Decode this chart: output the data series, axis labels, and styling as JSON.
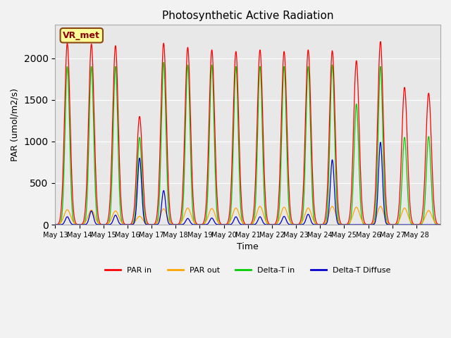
{
  "title": "Photosynthetic Active Radiation",
  "xlabel": "Time",
  "ylabel": "PAR (umol/m2/s)",
  "ylim": [
    0,
    2400
  ],
  "annotation": "VR_met",
  "ax_facecolor": "#e8e8e8",
  "fig_facecolor": "#f2f2f2",
  "legend_entries": [
    "PAR in",
    "PAR out",
    "Delta-T in",
    "Delta-T Diffuse"
  ],
  "legend_colors": [
    "#ff0000",
    "#ffa500",
    "#00cc00",
    "#0000cc"
  ],
  "x_tick_labels": [
    "May 13",
    "May 14",
    "May 15",
    "May 16",
    "May 17",
    "May 18",
    "May 19",
    "May 20",
    "May 21",
    "May 22",
    "May 23",
    "May 24",
    "May 25",
    "May 26",
    "May 27",
    "May 28"
  ],
  "n_days": 16,
  "day_points": 96,
  "PAR_in_peaks": [
    2180,
    2170,
    2150,
    1300,
    2180,
    2130,
    2100,
    2080,
    2100,
    2080,
    2100,
    2090,
    1970,
    2200,
    1650,
    1580
  ],
  "PAR_out_peaks": [
    180,
    175,
    165,
    100,
    190,
    200,
    195,
    200,
    220,
    210,
    200,
    220,
    210,
    220,
    200,
    170
  ],
  "DeltaT_in_peaks": [
    1900,
    1900,
    1900,
    1050,
    1950,
    1920,
    1920,
    1900,
    1900,
    1900,
    1900,
    1920,
    1450,
    1900,
    1050,
    1060
  ],
  "DeltaT_diff_peaks": [
    95,
    165,
    115,
    800,
    410,
    75,
    80,
    95,
    95,
    100,
    125,
    780,
    0,
    990,
    0,
    0
  ]
}
